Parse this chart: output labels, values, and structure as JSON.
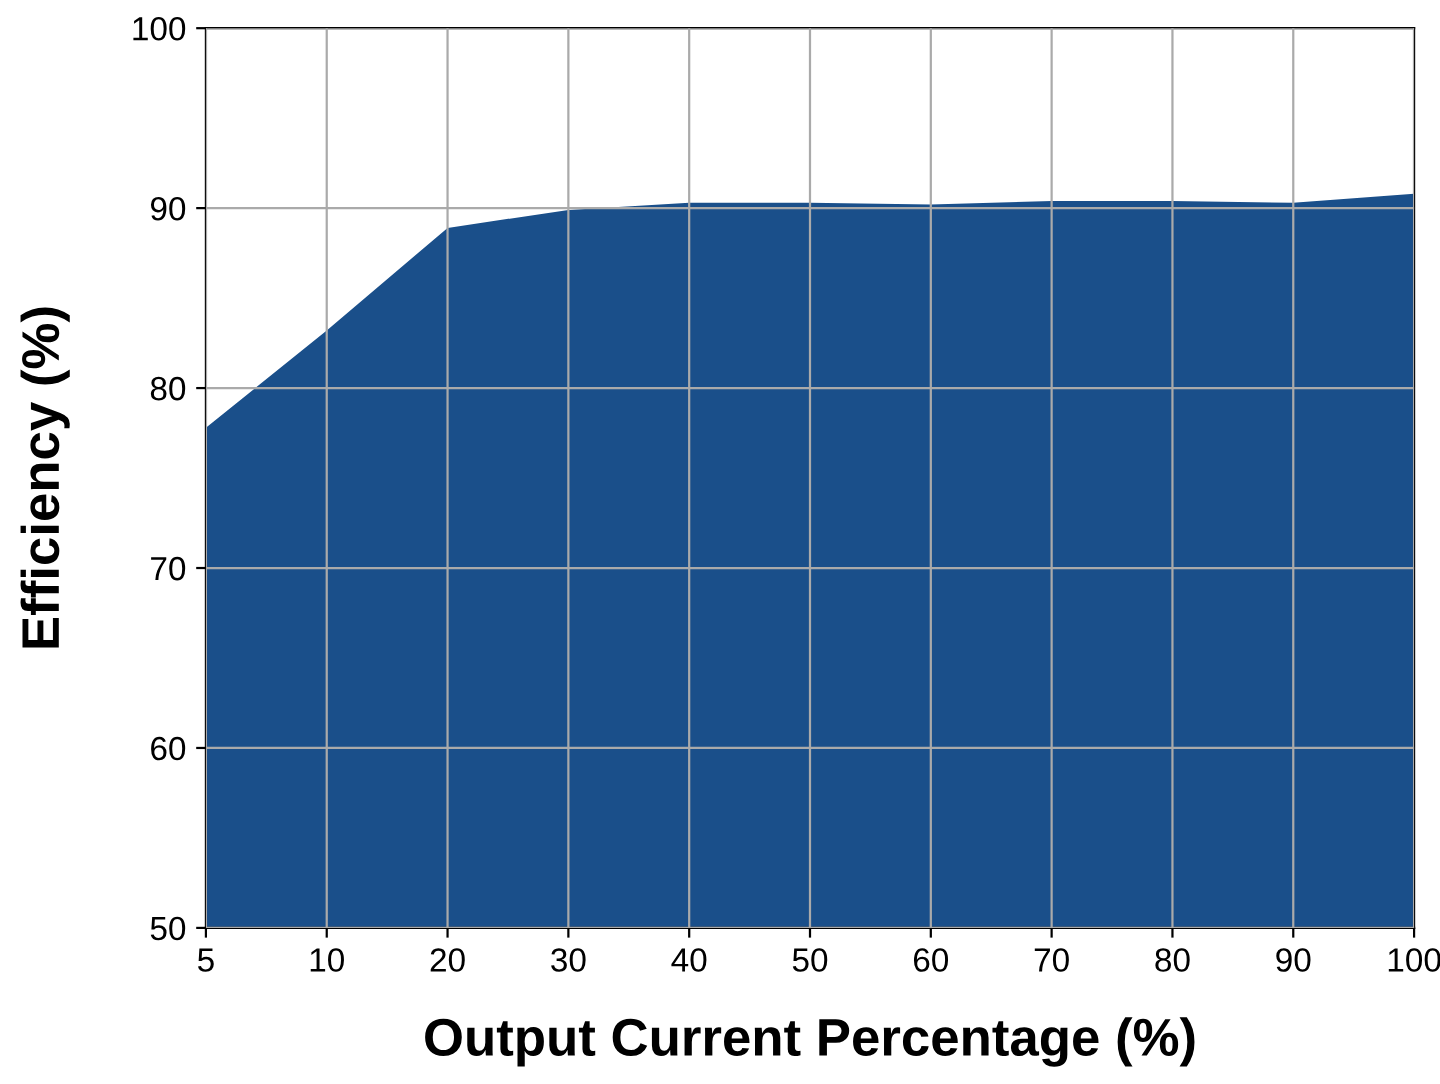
{
  "chart_data": {
    "type": "area",
    "xlabel": "Output Current Percentage (%)",
    "ylabel": "Efficiency (%)",
    "categories": [
      "5",
      "10",
      "20",
      "30",
      "40",
      "50",
      "60",
      "70",
      "80",
      "90",
      "100"
    ],
    "series": [
      {
        "color": "#1a4f8a",
        "values": [
          77.8,
          83.2,
          88.9,
          89.9,
          90.3,
          90.3,
          90.2,
          90.4,
          90.4,
          90.3,
          90.8
        ]
      }
    ],
    "ylim": [
      50,
      100
    ],
    "yticks": [
      50,
      60,
      70,
      80,
      90,
      100
    ],
    "grid": true
  }
}
